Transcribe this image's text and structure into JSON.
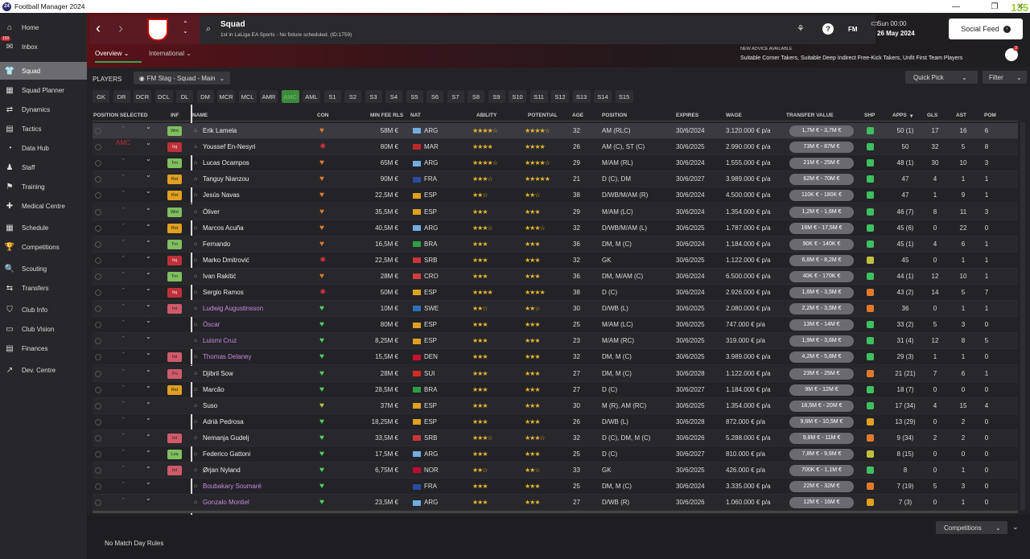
{
  "app": {
    "title": "Football Manager 2024",
    "fps": "135"
  },
  "nav": [
    {
      "label": "Home",
      "icon": "⌂",
      "name": "home"
    },
    {
      "label": "Inbox",
      "icon": "✉",
      "name": "inbox",
      "badge": "150"
    },
    {
      "label": "Squad",
      "icon": "👕",
      "name": "squad",
      "active": true
    },
    {
      "label": "Squad Planner",
      "icon": "▦",
      "name": "squad-planner"
    },
    {
      "label": "Dynamics",
      "icon": "⇄",
      "name": "dynamics"
    },
    {
      "label": "Tactics",
      "icon": "▤",
      "name": "tactics"
    },
    {
      "label": "Data Hub",
      "icon": "◔",
      "name": "data-hub"
    },
    {
      "label": "Staff",
      "icon": "♟",
      "name": "staff"
    },
    {
      "label": "Training",
      "icon": "⚑",
      "name": "training"
    },
    {
      "label": "Medical Centre",
      "icon": "✚",
      "name": "medical-centre"
    },
    {
      "label": "Schedule",
      "icon": "▦",
      "name": "schedule"
    },
    {
      "label": "Competitions",
      "icon": "🏆",
      "name": "competitions"
    },
    {
      "label": "Scouting",
      "icon": "🔍",
      "name": "scouting"
    },
    {
      "label": "Transfers",
      "icon": "⇆",
      "name": "transfers"
    },
    {
      "label": "Club Info",
      "icon": "⛉",
      "name": "club-info"
    },
    {
      "label": "Club Vision",
      "icon": "▭",
      "name": "club-vision"
    },
    {
      "label": "Finances",
      "icon": "▤",
      "name": "finances"
    },
    {
      "label": "Dev. Centre",
      "icon": "↗",
      "name": "dev-centre"
    }
  ],
  "header": {
    "title": "Squad",
    "subtitle": "1st in LaLiga EA Sports - No fixture scheduled. (ID:1759)",
    "date_line1": "Sun 00:00",
    "date_line2": "26 May 2024",
    "social": "Social Feed",
    "advice_title": "NEW ADVICE AVAILABLE",
    "advice_text": "Suitable Corner Takers, Suitable Deep Indirect Free-Kick Takers, Unfit First Team Players",
    "fm": "FM",
    "advice_badge": "3"
  },
  "tabs": {
    "overview": "Overview ⌄",
    "international": "International ⌄"
  },
  "players_label": "PLAYERS",
  "view_select": "FM Stag - Squad - Main",
  "quick_pick": "Quick Pick",
  "filter": "Filter",
  "positions": [
    "GK",
    "DR",
    "DCR",
    "DCL",
    "DL",
    "DM",
    "MCR",
    "MCL",
    "AMR",
    "AMC",
    "AML",
    "S1",
    "S2",
    "S3",
    "S4",
    "S5",
    "S6",
    "S7",
    "S8",
    "S9",
    "S10",
    "S11",
    "S12",
    "S13",
    "S14",
    "S15"
  ],
  "active_position": "AMC",
  "columns": {
    "position": "POSITION SELECTED",
    "inf": "INF",
    "name": "NAME",
    "con": "CON",
    "fee": "MIN FEE RLS",
    "nat": "NAT",
    "ability": "ABILITY",
    "potential": "POTENTIAL",
    "age": "AGE",
    "pos": "POSITION",
    "expires": "EXPIRES",
    "wage": "WAGE",
    "tv": "TRANSFER VALUE",
    "shp": "SHP",
    "apps": "APPS",
    "gls": "GLS",
    "ast": "AST",
    "pom": "POM"
  },
  "players": [
    {
      "sel": "-",
      "inf": "Wnt",
      "infc": "#7fbf5f",
      "name": "Erik Lamela",
      "con": "#e07a2a",
      "fee": "58M €",
      "nat": "ARG",
      "ab": "★★★★☆",
      "po": "★★★★☆",
      "age": "32",
      "pos": "AM (RLC)",
      "exp": "30/6/2024",
      "wage": "3.120.000 € p/a",
      "tv": "1,7M € - 3,7M €",
      "shp": "#3fbf5f",
      "apps": "50 (1)",
      "gls": "17",
      "ast": "16",
      "pom": "6",
      "loan": false
    },
    {
      "sel": "AMC",
      "inf": "Inj",
      "infc": "#c0303a",
      "name": "Youssef En-Nesyri",
      "con": "#c0303a",
      "fee": "80M €",
      "nat": "MAR",
      "ab": "★★★★",
      "po": "★★★★",
      "age": "26",
      "pos": "AM (C), ST (C)",
      "exp": "30/6/2025",
      "wage": "2.990.000 € p/a",
      "tv": "73M € - 87M €",
      "shp": "#3fbf5f",
      "apps": "50",
      "gls": "32",
      "ast": "5",
      "pom": "8",
      "loan": false
    },
    {
      "sel": "-",
      "inf": "Trn",
      "infc": "#7fbf5f",
      "name": "Lucas Ocampos",
      "con": "#e07a2a",
      "fee": "65M €",
      "nat": "ARG",
      "ab": "★★★★☆",
      "po": "★★★★☆",
      "age": "29",
      "pos": "M/AM (RL)",
      "exp": "30/6/2024",
      "wage": "1.555.000 € p/a",
      "tv": "21M € - 25M €",
      "shp": "#3fbf5f",
      "apps": "48 (1)",
      "gls": "30",
      "ast": "10",
      "pom": "3",
      "loan": false
    },
    {
      "sel": "-",
      "inf": "Rst",
      "infc": "#e0a020",
      "name": "Tanguy Nianzou",
      "con": "#e07a2a",
      "fee": "90M €",
      "nat": "FRA",
      "ab": "★★★☆",
      "po": "★★★★★",
      "age": "21",
      "pos": "D (C), DM",
      "exp": "30/6/2027",
      "wage": "3.989.000 € p/a",
      "tv": "62M € - 70M €",
      "shp": "#3fbf5f",
      "apps": "47",
      "gls": "4",
      "ast": "1",
      "pom": "1",
      "loan": false
    },
    {
      "sel": "-",
      "inf": "Rst",
      "infc": "#e0a020",
      "name": "Jesús Navas",
      "con": "#e07a2a",
      "fee": "22,5M €",
      "nat": "ESP",
      "ab": "★★☆",
      "po": "★★☆",
      "age": "38",
      "pos": "D/WB/M/AM (R)",
      "exp": "30/6/2024",
      "wage": "4.500.000 € p/a",
      "tv": "110K € - 180K €",
      "shp": "#3fbf5f",
      "apps": "47",
      "gls": "1",
      "ast": "9",
      "pom": "1",
      "loan": false
    },
    {
      "sel": "-",
      "inf": "Wnt",
      "infc": "#7fbf5f",
      "name": "Óliver",
      "con": "#e07a2a",
      "fee": "35,5M €",
      "nat": "ESP",
      "ab": "★★★",
      "po": "★★★",
      "age": "29",
      "pos": "M/AM (LC)",
      "exp": "30/6/2024",
      "wage": "1.354.000 € p/a",
      "tv": "1,2M € - 1,6M €",
      "shp": "#3fbf5f",
      "apps": "46 (7)",
      "gls": "8",
      "ast": "11",
      "pom": "3",
      "loan": false
    },
    {
      "sel": "-",
      "inf": "Rst",
      "infc": "#e0a020",
      "name": "Marcos Acuña",
      "con": "#e07a2a",
      "fee": "40,5M €",
      "nat": "ARG",
      "ab": "★★★☆",
      "po": "★★★☆",
      "age": "32",
      "pos": "D/WB/M/AM (L)",
      "exp": "30/6/2025",
      "wage": "1.787.000 € p/a",
      "tv": "16M € - 17,5M €",
      "shp": "#3fbf5f",
      "apps": "45 (6)",
      "gls": "0",
      "ast": "22",
      "pom": "0",
      "loan": false
    },
    {
      "sel": "-",
      "inf": "Trn",
      "infc": "#7fbf5f",
      "name": "Fernando",
      "con": "#e07a2a",
      "fee": "16,5M €",
      "nat": "BRA",
      "ab": "★★★",
      "po": "★★★",
      "age": "36",
      "pos": "DM, M (C)",
      "exp": "30/6/2024",
      "wage": "1.184.000 € p/a",
      "tv": "90K € - 140K €",
      "shp": "#3fbf5f",
      "apps": "45 (1)",
      "gls": "4",
      "ast": "6",
      "pom": "1",
      "loan": false
    },
    {
      "sel": "-",
      "inf": "Inj",
      "infc": "#c0303a",
      "name": "Marko Dmitrović",
      "con": "#c0303a",
      "fee": "22,5M €",
      "nat": "SRB",
      "ab": "★★★",
      "po": "★★★",
      "age": "32",
      "pos": "GK",
      "exp": "30/6/2025",
      "wage": "1.122.000 € p/a",
      "tv": "6,8M € - 8,2M €",
      "shp": "#c0c040",
      "apps": "45",
      "gls": "0",
      "ast": "1",
      "pom": "1",
      "loan": false
    },
    {
      "sel": "-",
      "inf": "Trn",
      "infc": "#7fbf5f",
      "name": "Ivan Rakitić",
      "con": "#e07a2a",
      "fee": "28M €",
      "nat": "CRO",
      "ab": "★★★",
      "po": "★★★",
      "age": "36",
      "pos": "DM, M/AM (C)",
      "exp": "30/6/2024",
      "wage": "6.500.000 € p/a",
      "tv": "40K € - 170K €",
      "shp": "#3fbf5f",
      "apps": "44 (1)",
      "gls": "12",
      "ast": "10",
      "pom": "1",
      "loan": false
    },
    {
      "sel": "-",
      "inf": "Inj",
      "infc": "#c0303a",
      "name": "Sergio Ramos",
      "con": "#c0303a",
      "fee": "50M €",
      "nat": "ESP",
      "ab": "★★★★",
      "po": "★★★★",
      "age": "38",
      "pos": "D (C)",
      "exp": "30/6/2024",
      "wage": "2.926.000 € p/a",
      "tv": "1,6M € - 3,5M €",
      "shp": "#e07a2a",
      "apps": "43 (2)",
      "gls": "14",
      "ast": "5",
      "pom": "7",
      "loan": false
    },
    {
      "sel": "-",
      "inf": "Int",
      "infc": "#d05a6a",
      "name": "Ludwig Augustinsson",
      "con": "#4fd060",
      "fee": "10M €",
      "nat": "SWE",
      "ab": "★★☆",
      "po": "★★☆",
      "age": "30",
      "pos": "D/WB (L)",
      "exp": "30/6/2025",
      "wage": "2.080.000 € p/a",
      "tv": "2,2M € - 3,5M €",
      "shp": "#e07a2a",
      "apps": "36",
      "gls": "0",
      "ast": "1",
      "pom": "1",
      "loan": true
    },
    {
      "sel": "-",
      "inf": "",
      "infc": "",
      "name": "Óscar",
      "con": "#4fd060",
      "fee": "80M €",
      "nat": "ESP",
      "ab": "★★★",
      "po": "★★★",
      "age": "25",
      "pos": "M/AM (LC)",
      "exp": "30/6/2025",
      "wage": "747.000 € p/a",
      "tv": "13M € - 14M €",
      "shp": "#3fbf5f",
      "apps": "33 (2)",
      "gls": "5",
      "ast": "3",
      "pom": "0",
      "loan": true
    },
    {
      "sel": "-",
      "inf": "",
      "infc": "",
      "name": "Luismi Cruz",
      "con": "#4fd060",
      "fee": "8,25M €",
      "nat": "ESP",
      "ab": "★★★",
      "po": "★★★",
      "age": "23",
      "pos": "M/AM (RC)",
      "exp": "30/6/2025",
      "wage": "319.000 € p/a",
      "tv": "1,9M € - 3,6M €",
      "shp": "#3fbf5f",
      "apps": "31 (4)",
      "gls": "12",
      "ast": "8",
      "pom": "5",
      "loan": true
    },
    {
      "sel": "-",
      "inf": "Int",
      "infc": "#d05a6a",
      "name": "Thomas Delaney",
      "con": "#4fd060",
      "fee": "15,5M €",
      "nat": "DEN",
      "ab": "★★★",
      "po": "★★★",
      "age": "32",
      "pos": "DM, M (C)",
      "exp": "30/6/2025",
      "wage": "3.989.000 € p/a",
      "tv": "4,2M € - 5,8M €",
      "shp": "#3fbf5f",
      "apps": "29 (3)",
      "gls": "1",
      "ast": "1",
      "pom": "0",
      "loan": true
    },
    {
      "sel": "-",
      "inf": "Trv",
      "infc": "#d05a6a",
      "name": "Djibril Sow",
      "con": "#4fd060",
      "fee": "28M €",
      "nat": "SUI",
      "ab": "★★★",
      "po": "★★★",
      "age": "27",
      "pos": "DM, M (C)",
      "exp": "30/6/2028",
      "wage": "1.122.000 € p/a",
      "tv": "23M € - 25M €",
      "shp": "#e07a2a",
      "apps": "21 (21)",
      "gls": "7",
      "ast": "6",
      "pom": "1",
      "loan": false
    },
    {
      "sel": "-",
      "inf": "Rst",
      "infc": "#e0a020",
      "name": "Marcão",
      "con": "#4fd060",
      "fee": "28,5M €",
      "nat": "BRA",
      "ab": "★★★",
      "po": "★★★",
      "age": "27",
      "pos": "D (C)",
      "exp": "30/6/2027",
      "wage": "1.184.000 € p/a",
      "tv": "9M € - 12M €",
      "shp": "#3fbf5f",
      "apps": "18 (7)",
      "gls": "0",
      "ast": "0",
      "pom": "0",
      "loan": false
    },
    {
      "sel": "-",
      "inf": "",
      "infc": "",
      "name": "Suso",
      "con": "#c0c040",
      "fee": "37M €",
      "nat": "ESP",
      "ab": "★★★",
      "po": "★★★",
      "age": "30",
      "pos": "M (R), AM (RC)",
      "exp": "30/6/2025",
      "wage": "1.354.000 € p/a",
      "tv": "18,5M € - 20M €",
      "shp": "#3fbf5f",
      "apps": "17 (34)",
      "gls": "4",
      "ast": "15",
      "pom": "4",
      "loan": false
    },
    {
      "sel": "-",
      "inf": "",
      "infc": "",
      "name": "Adrià Pedrosa",
      "con": "#4fd060",
      "fee": "18,25M €",
      "nat": "ESP",
      "ab": "★★★",
      "po": "★★★",
      "age": "26",
      "pos": "D/WB (L)",
      "exp": "30/6/2028",
      "wage": "872.000 € p/a",
      "tv": "9,6M € - 10,5M €",
      "shp": "#e0a020",
      "apps": "13 (29)",
      "gls": "0",
      "ast": "2",
      "pom": "0",
      "loan": false
    },
    {
      "sel": "-",
      "inf": "Int",
      "infc": "#d05a6a",
      "name": "Nemanja Gudelj",
      "con": "#4fd060",
      "fee": "33,5M €",
      "nat": "SRB",
      "ab": "★★★☆",
      "po": "★★★☆",
      "age": "32",
      "pos": "D (C), DM, M (C)",
      "exp": "30/6/2026",
      "wage": "5.288.000 € p/a",
      "tv": "9,8M € - 11M €",
      "shp": "#e07a2a",
      "apps": "9 (34)",
      "gls": "2",
      "ast": "2",
      "pom": "0",
      "loan": false
    },
    {
      "sel": "-",
      "inf": "Loa",
      "infc": "#7fbf5f",
      "name": "Federico Gattoni",
      "con": "#4fd060",
      "fee": "17,5M €",
      "nat": "ARG",
      "ab": "★★★",
      "po": "★★★",
      "age": "25",
      "pos": "D (C)",
      "exp": "30/6/2027",
      "wage": "810.000 € p/a",
      "tv": "7,8M € - 9,6M €",
      "shp": "#c0c040",
      "apps": "8 (15)",
      "gls": "0",
      "ast": "0",
      "pom": "0",
      "loan": false
    },
    {
      "sel": "-",
      "inf": "Int",
      "infc": "#d05a6a",
      "name": "Ørjan Nyland",
      "con": "#4fd060",
      "fee": "6,75M €",
      "nat": "NOR",
      "ab": "★★☆",
      "po": "★★☆",
      "age": "33",
      "pos": "GK",
      "exp": "30/6/2025",
      "wage": "426.000 € p/a",
      "tv": "700K € - 1,1M €",
      "shp": "#3fbf5f",
      "apps": "8",
      "gls": "0",
      "ast": "1",
      "pom": "0",
      "loan": false
    },
    {
      "sel": "-",
      "inf": "",
      "infc": "",
      "name": "Boubakary Soumaré",
      "con": "#4fd060",
      "fee": "-",
      "nat": "FRA",
      "ab": "★★★",
      "po": "★★★",
      "age": "25",
      "pos": "DM, M (C)",
      "exp": "30/6/2024",
      "wage": "3.335.000 € p/a",
      "tv": "22M € - 32M €",
      "shp": "#e07a2a",
      "apps": "7 (19)",
      "gls": "5",
      "ast": "3",
      "pom": "0",
      "loan": true
    },
    {
      "sel": "-",
      "inf": "",
      "infc": "",
      "name": "Gonzalo Montiel",
      "con": "#4fd060",
      "fee": "23,5M €",
      "nat": "ARG",
      "ab": "★★★",
      "po": "★★★",
      "age": "27",
      "pos": "D/WB (R)",
      "exp": "30/6/2026",
      "wage": "1.060.000 € p/a",
      "tv": "12M € - 16M €",
      "shp": "#e0a020",
      "apps": "7 (3)",
      "gls": "0",
      "ast": "1",
      "pom": "0",
      "loan": true
    }
  ],
  "footer": {
    "rules": "No Match Day Rules",
    "competitions": "Competitions"
  },
  "flags": {
    "ARG": "#74acdf",
    "MAR": "#c1272d",
    "FRA": "#2b4aa0",
    "ESP": "#e0a020",
    "BRA": "#2f9e44",
    "SRB": "#c6363c",
    "CRO": "#d0403a",
    "SWE": "#2d6fb5",
    "DEN": "#c8102e",
    "SUI": "#d52b1e",
    "NOR": "#ba0c2f"
  }
}
